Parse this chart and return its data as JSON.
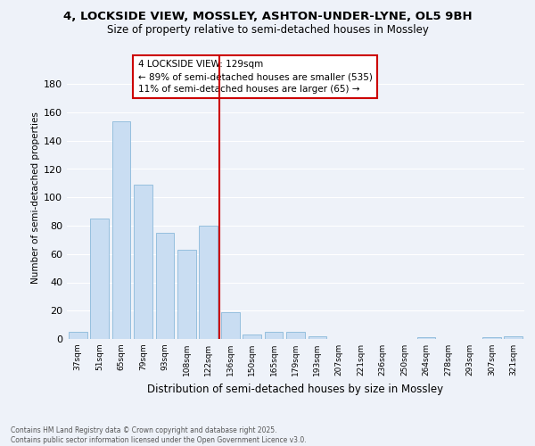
{
  "title1": "4, LOCKSIDE VIEW, MOSSLEY, ASHTON-UNDER-LYNE, OL5 9BH",
  "title2": "Size of property relative to semi-detached houses in Mossley",
  "xlabel": "Distribution of semi-detached houses by size in Mossley",
  "ylabel": "Number of semi-detached properties",
  "categories": [
    "37sqm",
    "51sqm",
    "65sqm",
    "79sqm",
    "93sqm",
    "108sqm",
    "122sqm",
    "136sqm",
    "150sqm",
    "165sqm",
    "179sqm",
    "193sqm",
    "207sqm",
    "221sqm",
    "236sqm",
    "250sqm",
    "264sqm",
    "278sqm",
    "293sqm",
    "307sqm",
    "321sqm"
  ],
  "values": [
    5,
    85,
    154,
    109,
    75,
    63,
    80,
    19,
    3,
    5,
    5,
    2,
    0,
    0,
    0,
    0,
    1,
    0,
    0,
    1,
    2
  ],
  "bar_color": "#c9ddf2",
  "bar_edge_color": "#7aafd4",
  "vline_color": "#cc0000",
  "vline_x": 6.5,
  "vline_label": "4 LOCKSIDE VIEW: 129sqm",
  "annotation_smaller": "← 89% of semi-detached houses are smaller (535)",
  "annotation_larger": "11% of semi-detached houses are larger (65) →",
  "ylim": [
    0,
    200
  ],
  "yticks": [
    0,
    20,
    40,
    60,
    80,
    100,
    120,
    140,
    160,
    180
  ],
  "footer": "Contains HM Land Registry data © Crown copyright and database right 2025.\nContains public sector information licensed under the Open Government Licence v3.0.",
  "bg_color": "#eef2f9",
  "plot_bg_color": "#eef2f9",
  "grid_color": "#ffffff",
  "annotation_box_color": "#ffffff",
  "annotation_box_edge": "#cc0000",
  "title1_fontsize": 9.5,
  "title2_fontsize": 8.5,
  "ylabel_fontsize": 7.5,
  "xlabel_fontsize": 8.5,
  "ytick_fontsize": 8,
  "xtick_fontsize": 6.5,
  "annotation_fontsize": 7.5,
  "footer_fontsize": 5.5
}
